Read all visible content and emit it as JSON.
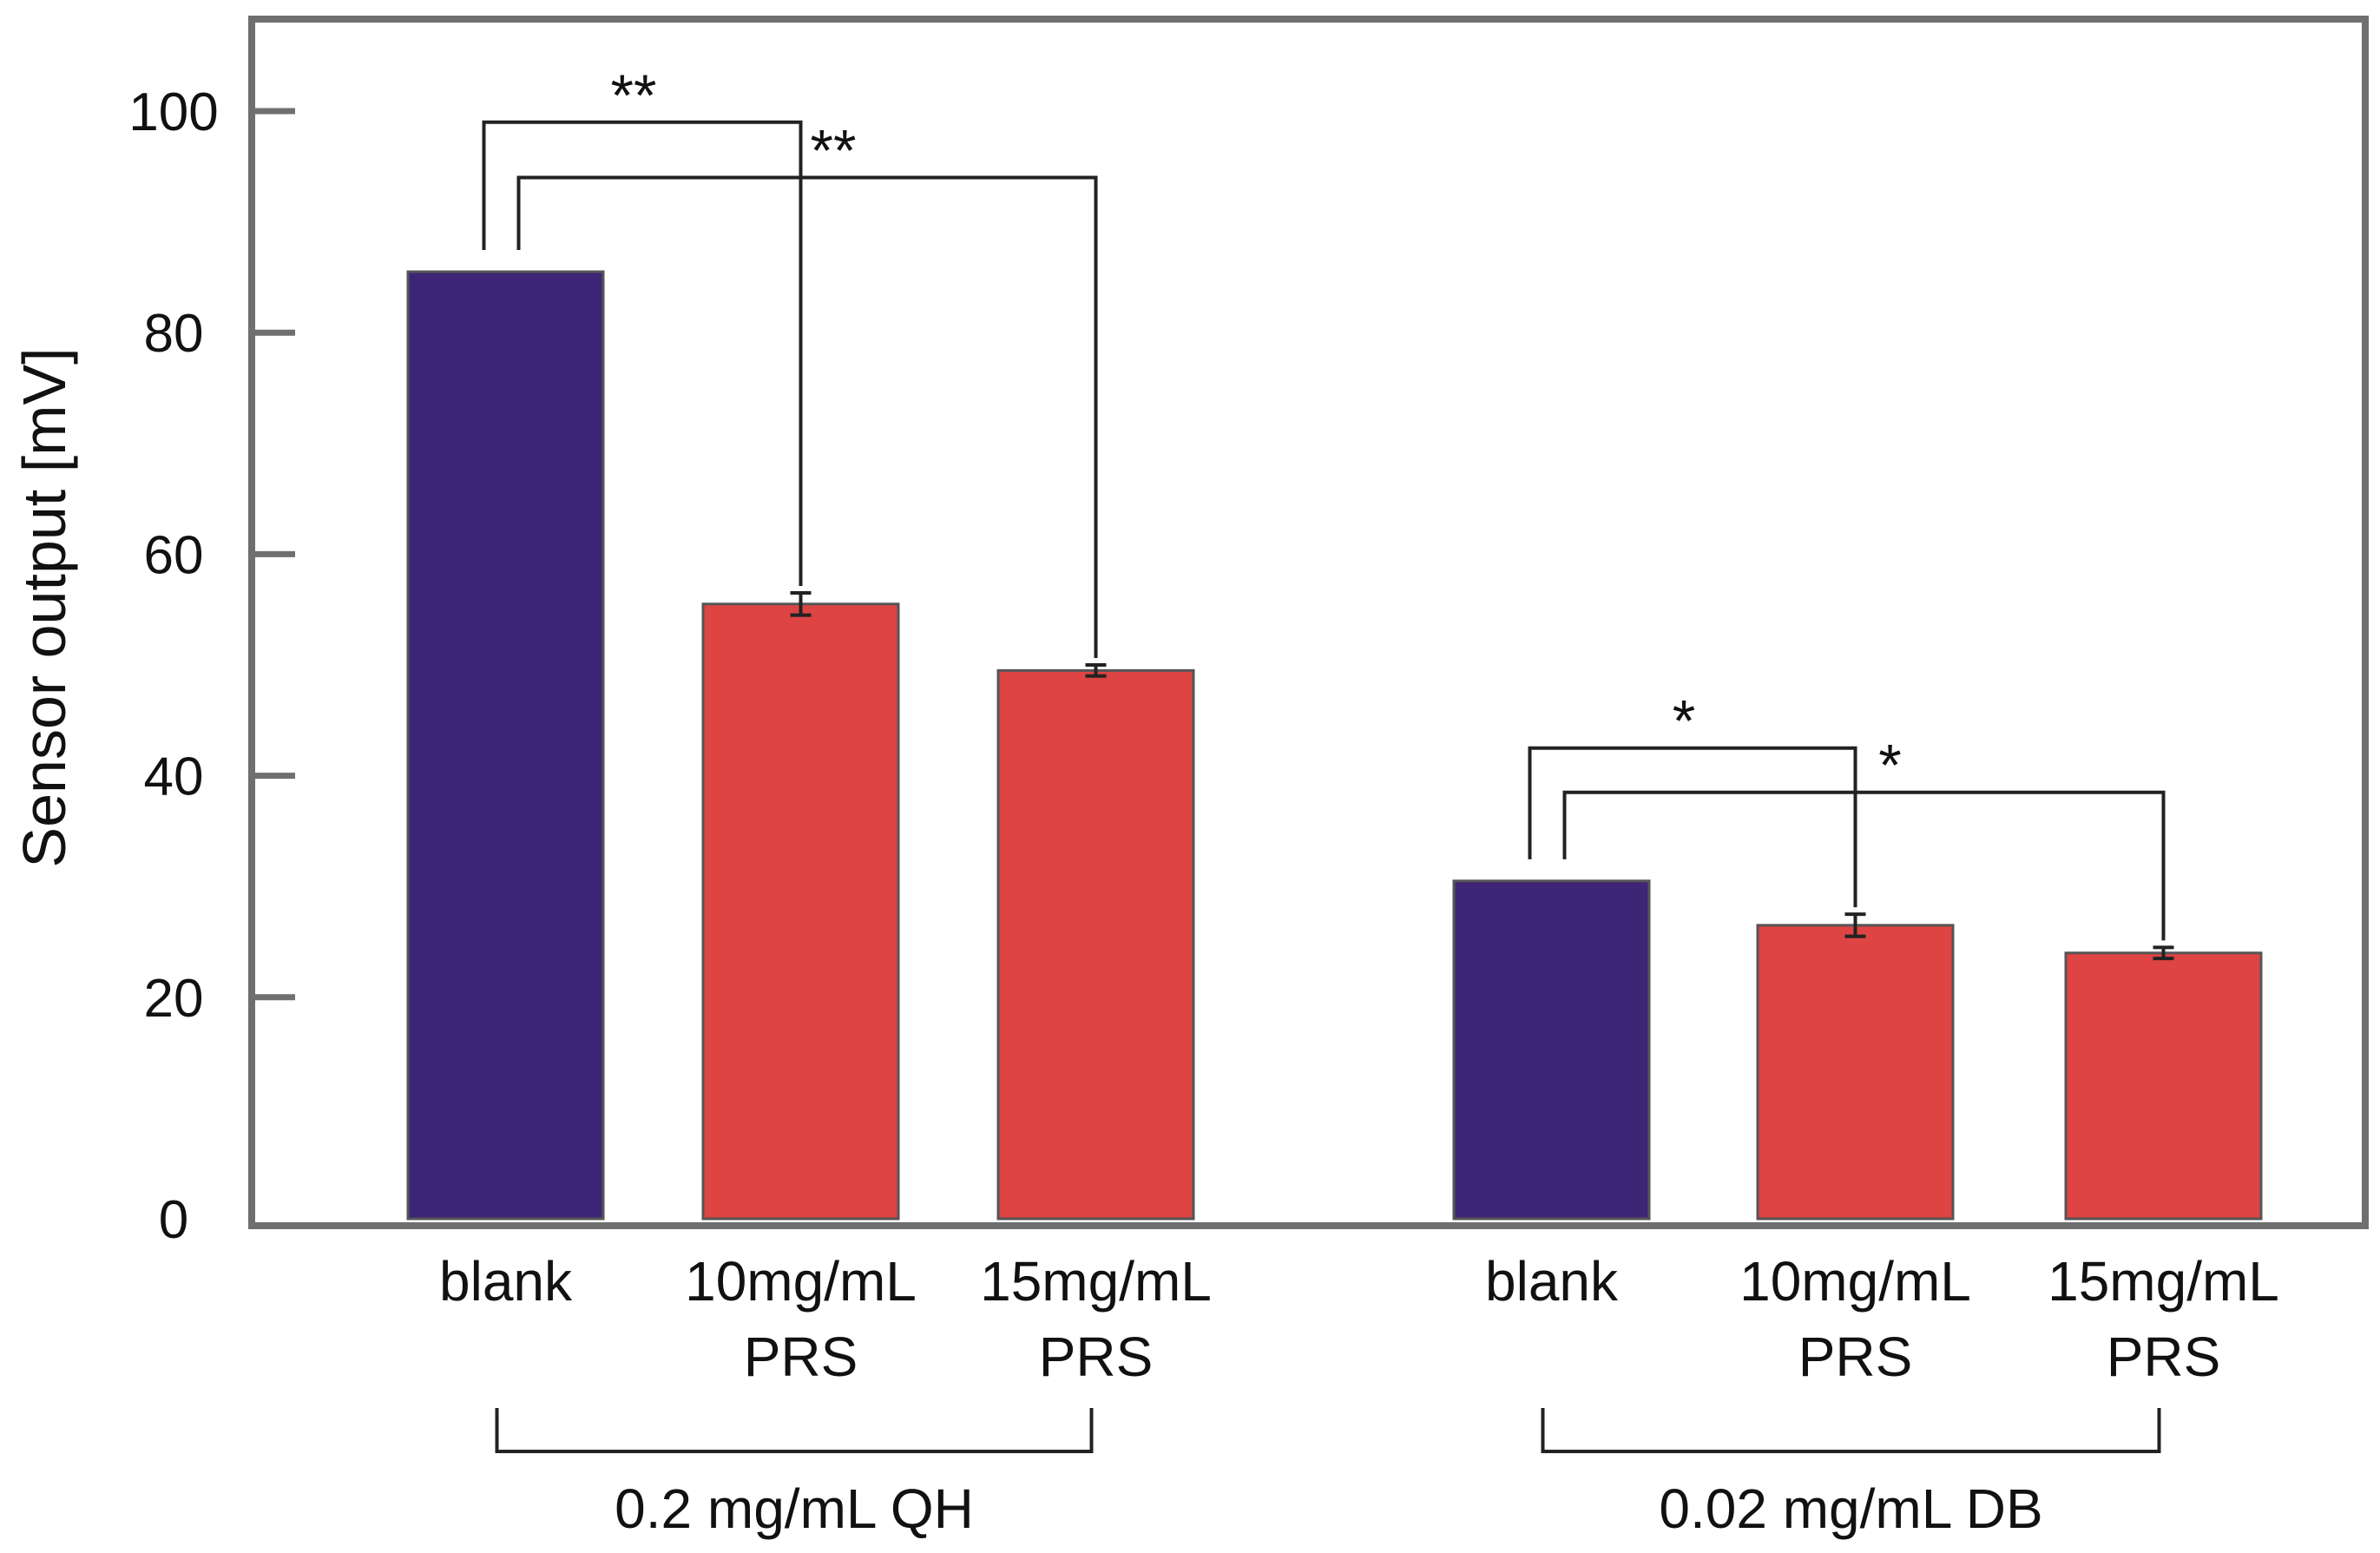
{
  "chart_data": {
    "type": "bar",
    "ylabel": "Sensor output [mV]",
    "ylim": [
      0,
      100
    ],
    "yticks": [
      "0",
      "20",
      "40",
      "60",
      "80",
      "100"
    ],
    "categories": [
      {
        "line1": "blank",
        "line2": ""
      },
      {
        "line1": "10mg/mL",
        "line2": "PRS"
      },
      {
        "line1": "15mg/mL",
        "line2": "PRS"
      },
      {
        "line1": "blank",
        "line2": ""
      },
      {
        "line1": "10mg/mL",
        "line2": "PRS"
      },
      {
        "line1": "15mg/mL",
        "line2": "PRS"
      }
    ],
    "values": [
      85.5,
      55.5,
      49.5,
      30.5,
      26.5,
      24.0
    ],
    "errors": [
      0,
      1.0,
      0.5,
      0,
      1.0,
      0.5
    ],
    "bar_colors": [
      "#3f2576",
      "#de4444",
      "#de4444",
      "#3f2576",
      "#de4444",
      "#de4444"
    ],
    "groups": [
      {
        "label": "0.2 mg/mL QH"
      },
      {
        "label": "0.02 mg/mL DB"
      }
    ],
    "significance": [
      {
        "from": 0,
        "to": 1,
        "label": "**"
      },
      {
        "from": 0,
        "to": 2,
        "label": "**"
      },
      {
        "from": 3,
        "to": 4,
        "label": "*"
      },
      {
        "from": 3,
        "to": 5,
        "label": "*"
      }
    ],
    "grid": false,
    "legend": "none"
  }
}
